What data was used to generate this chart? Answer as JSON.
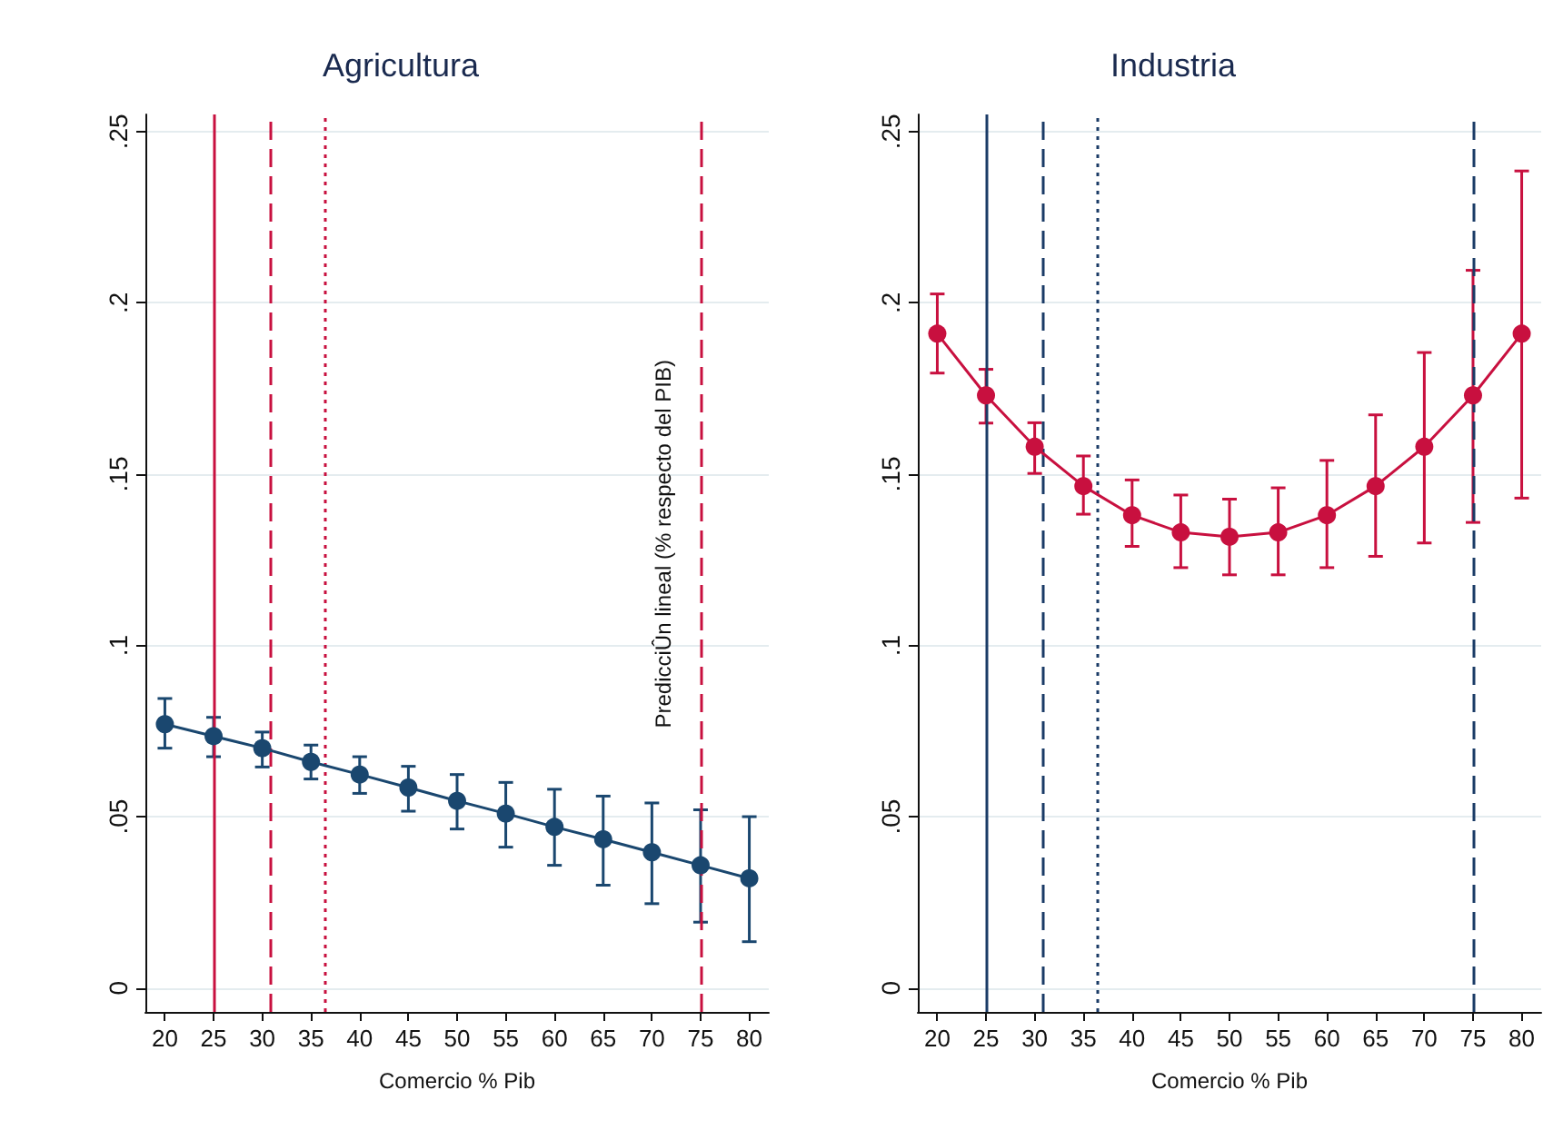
{
  "chart_data": [
    {
      "type": "line",
      "title": "Agricultura",
      "xlabel": "Comercio % Pib",
      "x": [
        20,
        25,
        30,
        35,
        40,
        45,
        50,
        55,
        60,
        65,
        70,
        75,
        80
      ],
      "series": [
        {
          "color": "#1a476f",
          "values": [
            0.077,
            0.0735,
            0.07,
            0.066,
            0.0623,
            0.0585,
            0.0546,
            0.0509,
            0.047,
            0.0434,
            0.0396,
            0.0358,
            0.032
          ],
          "errors": [
            [
              0.07,
              0.0845
            ],
            [
              0.0675,
              0.079
            ],
            [
              0.0645,
              0.0747
            ],
            [
              0.061,
              0.0709
            ],
            [
              0.0568,
              0.0675
            ],
            [
              0.0516,
              0.0647
            ],
            [
              0.0464,
              0.0623
            ],
            [
              0.0411,
              0.06
            ],
            [
              0.0358,
              0.058
            ],
            [
              0.03,
              0.056
            ],
            [
              0.0246,
              0.054
            ],
            [
              0.0192,
              0.052
            ],
            [
              0.0135,
              0.05
            ]
          ]
        }
      ],
      "xlim": [
        18,
        82
      ],
      "xticks": [
        20,
        25,
        30,
        35,
        40,
        45,
        50,
        55,
        60,
        65,
        70,
        75,
        80
      ],
      "ylim": [
        -0.007,
        0.255
      ],
      "yticks": [
        0,
        {
          "value": 0.05,
          "label": ".05"
        },
        {
          "value": 0.1,
          "label": ".1"
        },
        {
          "value": 0.15,
          "label": ".15"
        },
        {
          "value": 0.2,
          "label": ".2"
        },
        {
          "value": 0.25,
          "label": ".25"
        }
      ],
      "ref_lines": [
        {
          "axis": "x",
          "value": 25,
          "color": "#c8103f",
          "line_style": "solid"
        },
        {
          "axis": "x",
          "value": 30.8,
          "color": "#c8103f",
          "line_style": "dashed"
        },
        {
          "axis": "x",
          "value": 36.5,
          "color": "#c8103f",
          "line_style": "dotted"
        },
        {
          "axis": "x",
          "value": 75,
          "color": "#c8103f",
          "line_style": "dashed"
        }
      ],
      "annotations": [
        "PredicciÛn lineal (% respecto del PIB)"
      ],
      "grid": "y",
      "marker": "circle",
      "line_style": "solid"
    },
    {
      "type": "line",
      "title": "Industria",
      "xlabel": "Comercio % Pib",
      "x": [
        20,
        25,
        30,
        35,
        40,
        45,
        50,
        55,
        60,
        65,
        70,
        75,
        80
      ],
      "series": [
        {
          "color": "#c8103f",
          "values": [
            0.191,
            0.173,
            0.158,
            0.1465,
            0.138,
            0.133,
            0.1317,
            0.133,
            0.138,
            0.1465,
            0.158,
            0.173,
            0.191
          ],
          "errors": [
            [
              0.1795,
              0.2026
            ],
            [
              0.1649,
              0.1806
            ],
            [
              0.1502,
              0.165
            ],
            [
              0.1383,
              0.1553
            ],
            [
              0.1289,
              0.1483
            ],
            [
              0.1227,
              0.1439
            ],
            [
              0.1206,
              0.1427
            ],
            [
              0.1206,
              0.146
            ],
            [
              0.1227,
              0.154
            ],
            [
              0.126,
              0.1673
            ],
            [
              0.1299,
              0.1855
            ],
            [
              0.1359,
              0.2095
            ],
            [
              0.143,
              0.2385
            ]
          ]
        }
      ],
      "xlim": [
        18,
        82
      ],
      "xticks": [
        20,
        25,
        30,
        35,
        40,
        45,
        50,
        55,
        60,
        65,
        70,
        75,
        80
      ],
      "ylim": [
        -0.007,
        0.255
      ],
      "yticks": [
        0,
        {
          "value": 0.05,
          "label": ".05"
        },
        {
          "value": 0.1,
          "label": ".1"
        },
        {
          "value": 0.15,
          "label": ".15"
        },
        {
          "value": 0.2,
          "label": ".2"
        },
        {
          "value": 0.25,
          "label": ".25"
        }
      ],
      "ref_lines": [
        {
          "axis": "x",
          "value": 25,
          "color": "#1a3b66",
          "line_style": "solid"
        },
        {
          "axis": "x",
          "value": 30.8,
          "color": "#1a3b66",
          "line_style": "dashed"
        },
        {
          "axis": "x",
          "value": 36.5,
          "color": "#1a3b66",
          "line_style": "dotted"
        },
        {
          "axis": "x",
          "value": 75,
          "color": "#1a3b66",
          "line_style": "dashed"
        }
      ],
      "grid": "y",
      "marker": "circle",
      "line_style": "solid"
    }
  ]
}
